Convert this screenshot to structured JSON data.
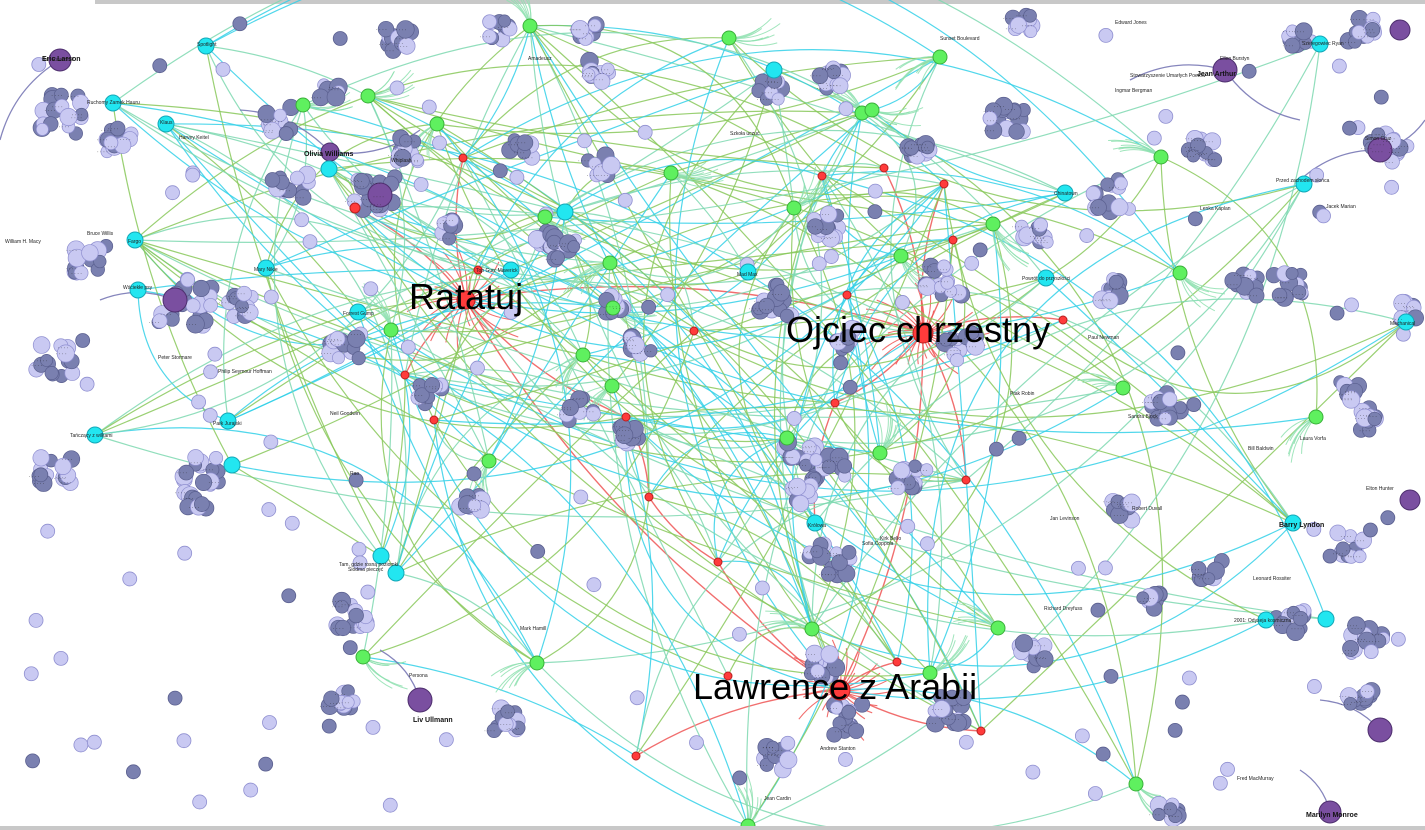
{
  "graph": {
    "colors": {
      "film": "#ff3b3b",
      "film_edge": "#ee5555",
      "director": "#22e6f0",
      "director_edge": "#33d0e8",
      "genre": "#5ff05f",
      "genre_edge": "#88c85a",
      "person": "#c9c9f2",
      "person_dark": "#7a80b0",
      "star": "#7a4fa0",
      "mixed_edge": "#7ed8b0",
      "purple_edge": "#7070b0"
    },
    "major_films": [
      {
        "id": "ratatuj",
        "label": "Ratatuj"
      },
      {
        "id": "ojciec",
        "label": "Ojciec chrzestny"
      },
      {
        "id": "lawrence",
        "label": "Lawrence z Arabii"
      }
    ],
    "named_people": [
      {
        "id": "p1",
        "label": "Eric Larson"
      },
      {
        "id": "p2",
        "label": "Olivia Williams"
      },
      {
        "id": "p3",
        "label": "Marilyn Monroe"
      },
      {
        "id": "p4",
        "label": "Liv Ullmann"
      },
      {
        "id": "p5",
        "label": "Jean Arthur"
      },
      {
        "id": "p6",
        "label": "Barry Lyndon"
      },
      {
        "id": "p7",
        "label": "Leonard Rossiter"
      },
      {
        "id": "p8",
        "label": "Fred MacMurray"
      },
      {
        "id": "p9",
        "label": "Peter Stormare"
      },
      {
        "id": "p10",
        "label": "Philip Seymour Hoffman"
      },
      {
        "id": "p11",
        "label": "Persona"
      },
      {
        "id": "p12",
        "label": "Forrest Gump"
      },
      {
        "id": "p13",
        "label": "Park Jurajski"
      },
      {
        "id": "p14",
        "label": "Fargo"
      },
      {
        "id": "p15",
        "label": "Wściekłe psy"
      },
      {
        "id": "p16",
        "label": "Tańczący z wilkami"
      },
      {
        "id": "p17",
        "label": "Top Gun: Maverick"
      },
      {
        "id": "p18",
        "label": "Mad Max"
      },
      {
        "id": "p19",
        "label": "Spotlight"
      },
      {
        "id": "p20",
        "label": "Whiplash"
      },
      {
        "id": "p21",
        "label": "Amadeusz"
      },
      {
        "id": "p22",
        "label": "Chinatown"
      },
      {
        "id": "p23",
        "label": "Królowa"
      },
      {
        "id": "p24",
        "label": "2001: Odyseja kosmiczna"
      },
      {
        "id": "p25",
        "label": "Powrót do przyszłości"
      },
      {
        "id": "p26",
        "label": "Szeregowiec Ryan"
      },
      {
        "id": "p27",
        "label": "Przed zachodem słońca"
      },
      {
        "id": "p28",
        "label": "Stowarzyszenie Umarłych Poetów"
      },
      {
        "id": "p29",
        "label": "Szkoła uczuć"
      },
      {
        "id": "p30",
        "label": "Sunset Boulevard"
      },
      {
        "id": "p31",
        "label": "Tam, gdzie rosną poziomki"
      },
      {
        "id": "p32",
        "label": "Siódma pieczęć"
      },
      {
        "id": "p33",
        "label": "Edward Jones"
      },
      {
        "id": "p34",
        "label": "Ruchomy Zamek Hauru"
      },
      {
        "id": "p35",
        "label": "Klaus"
      },
      {
        "id": "p36",
        "label": "Harvey Keitel"
      },
      {
        "id": "p37",
        "label": "William H. Macy"
      },
      {
        "id": "p38",
        "label": "Bruce Willis"
      },
      {
        "id": "p39",
        "label": "Ellen Burstyn"
      },
      {
        "id": "p40",
        "label": "Elton Hunter"
      },
      {
        "id": "p41",
        "label": "Mechanical"
      },
      {
        "id": "p42",
        "label": "Lenka Kaplan"
      },
      {
        "id": "p43",
        "label": "Ptak Robin"
      },
      {
        "id": "p44",
        "label": "Kirk Bello"
      },
      {
        "id": "p45",
        "label": "Neil Goodwin"
      },
      {
        "id": "p46",
        "label": "Rao"
      },
      {
        "id": "p47",
        "label": "Mary Nikie"
      },
      {
        "id": "p48",
        "label": "Jacek Marian"
      },
      {
        "id": "p49",
        "label": "Sandra Block"
      },
      {
        "id": "p50",
        "label": "Bill Baldwin"
      },
      {
        "id": "p51",
        "label": "Paul Newman"
      },
      {
        "id": "p52",
        "label": "Jan Levinson"
      },
      {
        "id": "p53",
        "label": "Mark Hamill"
      },
      {
        "id": "p54",
        "label": "Ingmar Bergman"
      },
      {
        "id": "p55",
        "label": "Robert Duvall"
      },
      {
        "id": "p56",
        "label": "Richard Dreyfuss"
      },
      {
        "id": "p57",
        "label": "Sofia Coppola"
      },
      {
        "id": "p58",
        "label": "Andrew Stanton"
      },
      {
        "id": "p59",
        "label": "Jean Cardin"
      },
      {
        "id": "p60",
        "label": "Laura Vorfa"
      },
      {
        "id": "p61",
        "label": "Simon Cruz"
      },
      {
        "id": "p62",
        "label": "Ben Ravenhill"
      }
    ]
  }
}
